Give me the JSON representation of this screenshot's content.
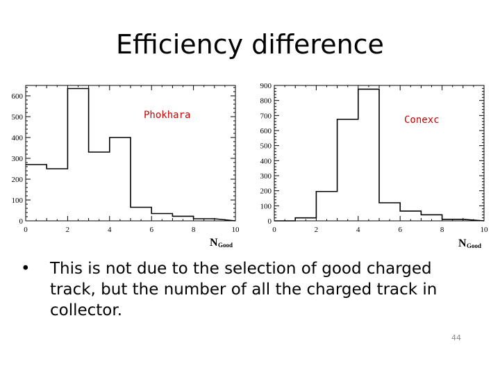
{
  "slide": {
    "title": "Efficiency difference",
    "bullet": "This is not due to the selection of good charged track, but the number of all the charged track in collector.",
    "bullet_marker": "•",
    "page_number": "44"
  },
  "chart_data": [
    {
      "type": "bar",
      "annotation": "Phokhara",
      "annotation_color": "#cc0000",
      "xlabel": "N",
      "xlabel_sub": "Good",
      "xlim": [
        0,
        10
      ],
      "ylim": [
        0,
        650
      ],
      "xticks": [
        "0",
        "2",
        "4",
        "6",
        "8",
        "10"
      ],
      "yticks": [
        "0",
        "100",
        "200",
        "300",
        "400",
        "500",
        "600"
      ],
      "bin_edges": [
        0,
        1,
        2,
        3,
        4,
        5,
        6,
        7,
        8,
        9
      ],
      "values": [
        270,
        250,
        635,
        330,
        400,
        65,
        35,
        22,
        10
      ]
    },
    {
      "type": "bar",
      "annotation": "Conexc",
      "annotation_color": "#cc0000",
      "xlabel": "N",
      "xlabel_sub": "Good",
      "xlim": [
        0,
        10
      ],
      "ylim": [
        0,
        900
      ],
      "xticks": [
        "0",
        "2",
        "4",
        "6",
        "8",
        "10"
      ],
      "yticks": [
        "0",
        "100",
        "200",
        "300",
        "400",
        "500",
        "600",
        "700",
        "800",
        "900"
      ],
      "bin_edges": [
        0,
        1,
        2,
        3,
        4,
        5,
        6,
        7,
        8,
        9
      ],
      "values": [
        0,
        20,
        195,
        675,
        875,
        120,
        65,
        40,
        10
      ]
    }
  ]
}
